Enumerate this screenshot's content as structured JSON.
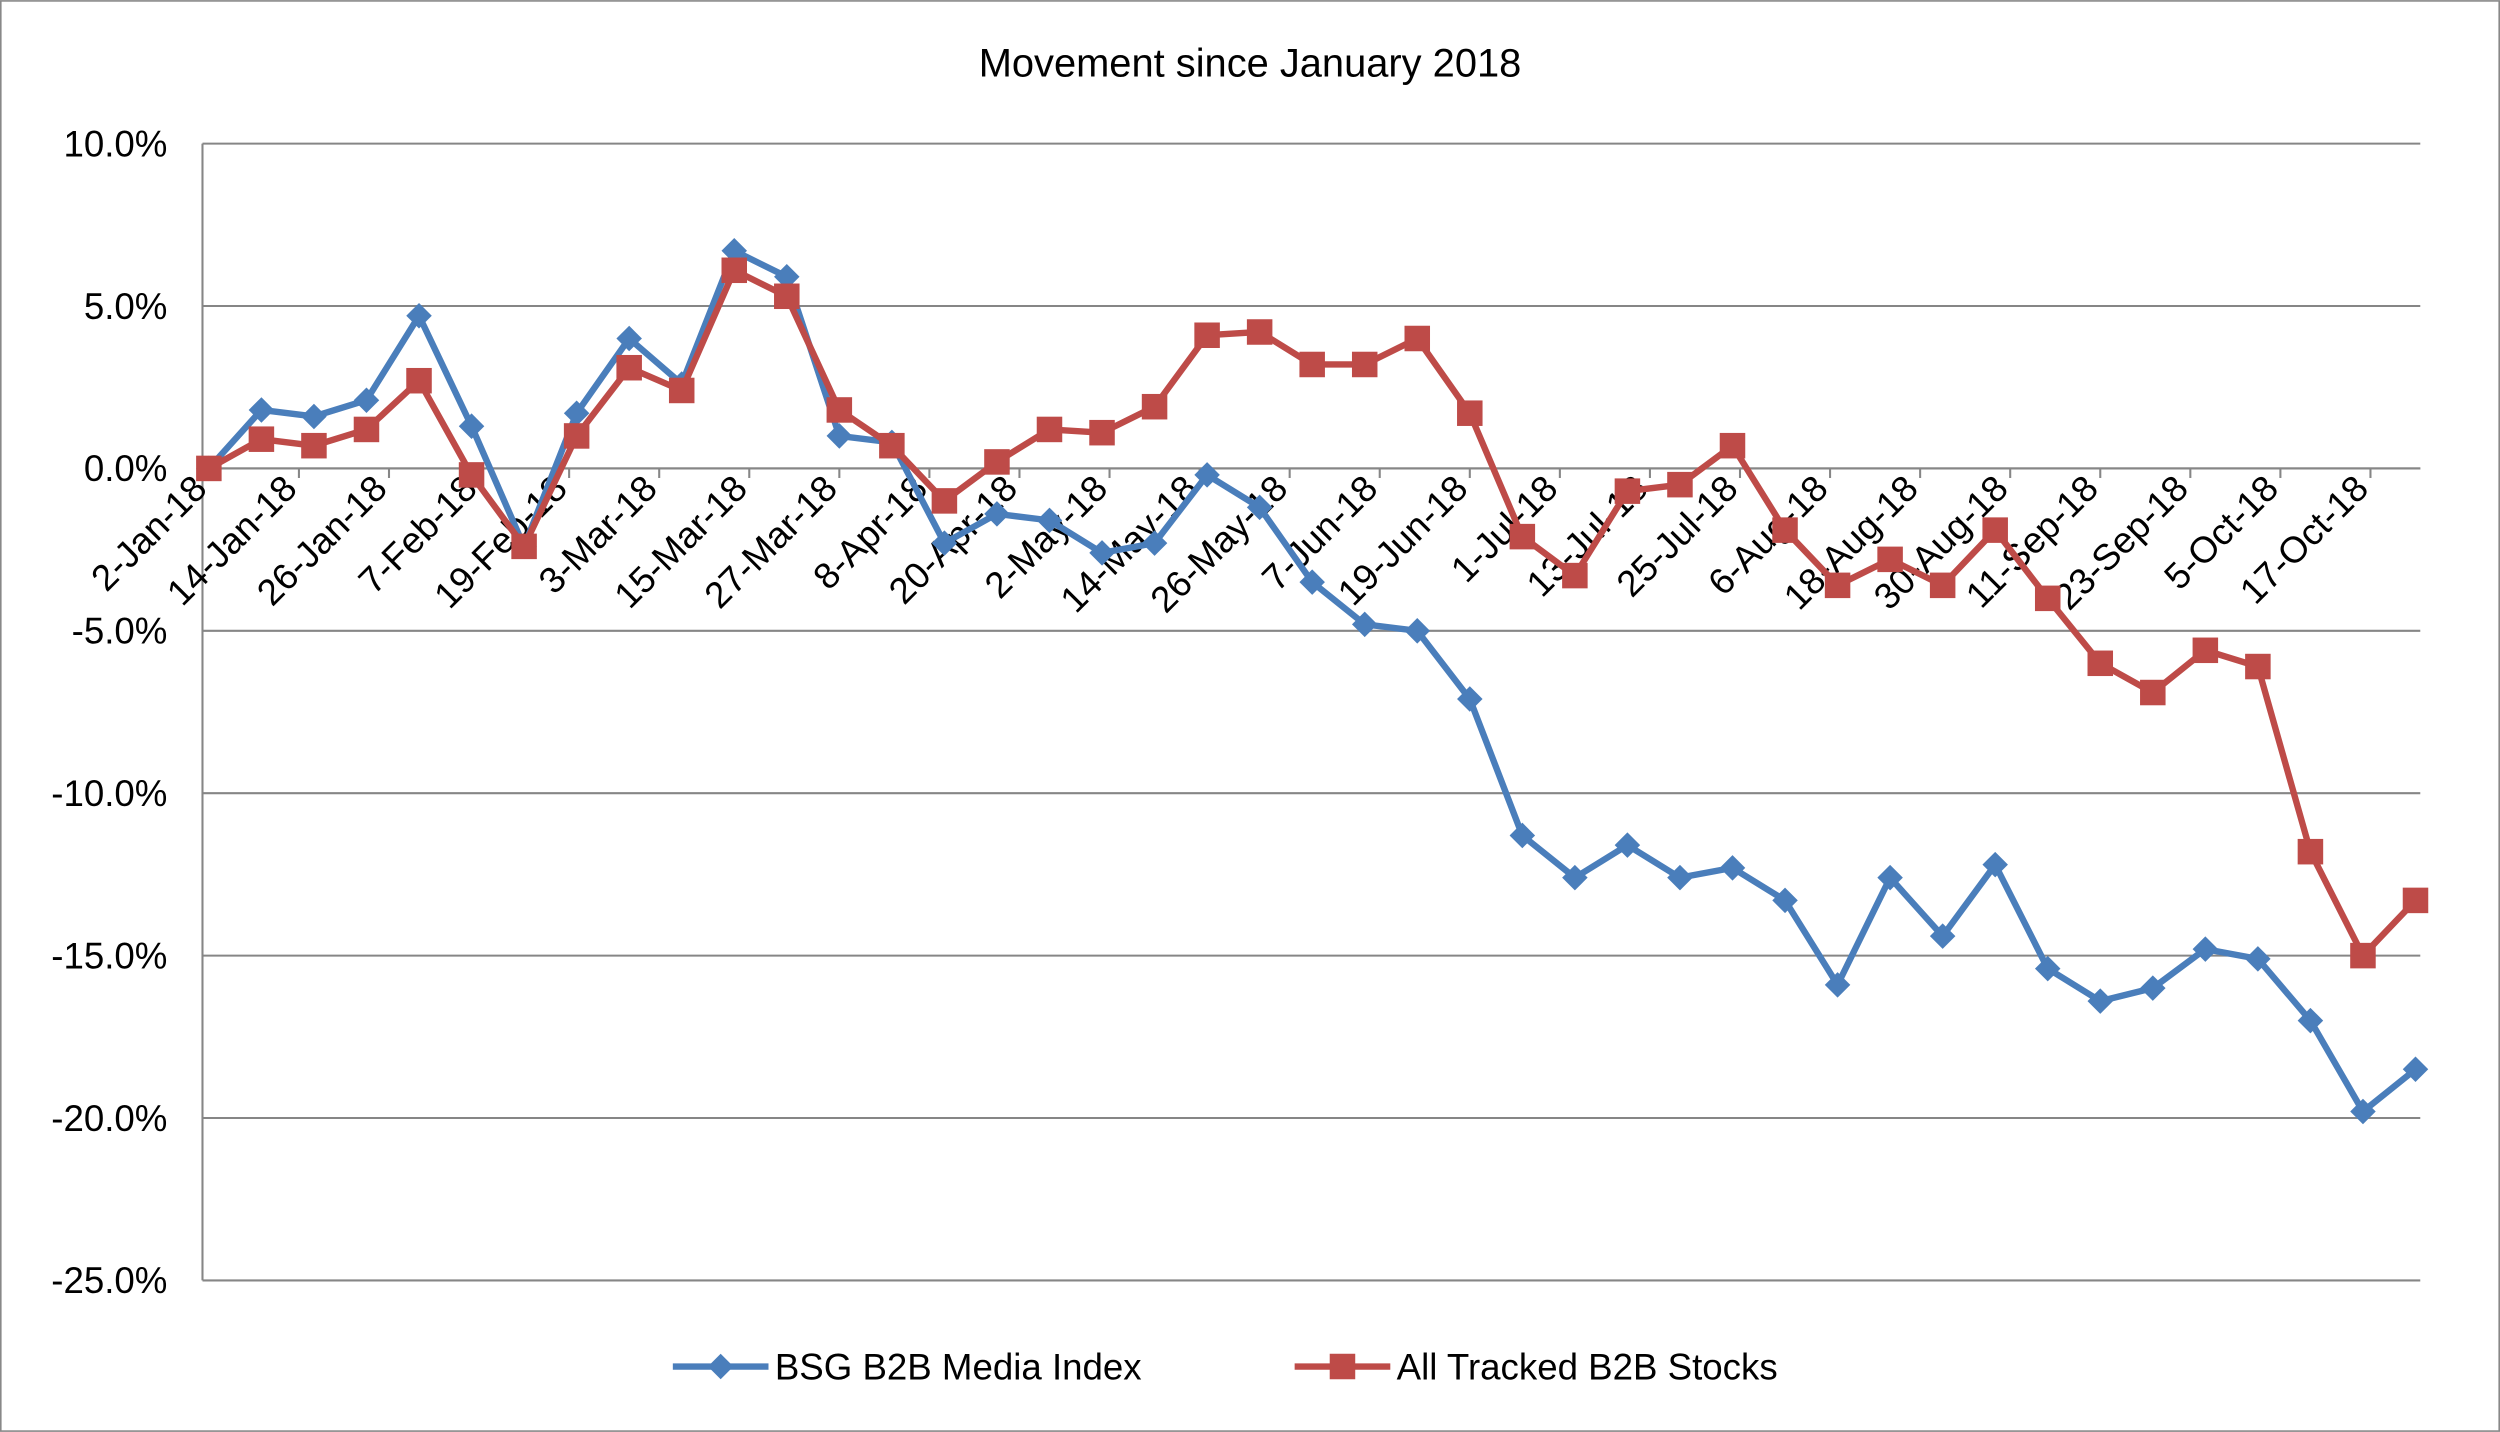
{
  "chart_data": {
    "type": "line",
    "title": "Movement since January 2018",
    "x": [
      "2018-01-02",
      "2018-01-09",
      "2018-01-16",
      "2018-01-23",
      "2018-01-30",
      "2018-02-06",
      "2018-02-13",
      "2018-02-20",
      "2018-02-27",
      "2018-03-06",
      "2018-03-13",
      "2018-03-20",
      "2018-03-27",
      "2018-04-03",
      "2018-04-10",
      "2018-04-17",
      "2018-04-24",
      "2018-05-01",
      "2018-05-08",
      "2018-05-15",
      "2018-05-22",
      "2018-05-29",
      "2018-06-05",
      "2018-06-12",
      "2018-06-19",
      "2018-06-26",
      "2018-07-03",
      "2018-07-10",
      "2018-07-17",
      "2018-07-24",
      "2018-07-31",
      "2018-08-07",
      "2018-08-14",
      "2018-08-21",
      "2018-08-28",
      "2018-09-04",
      "2018-09-11",
      "2018-09-18",
      "2018-09-25",
      "2018-10-02",
      "2018-10-09",
      "2018-10-16",
      "2018-10-23"
    ],
    "series": [
      {
        "name": "BSG B2B Media Index",
        "color": "#4a7ebb",
        "marker": "diamond",
        "values": [
          0,
          1.8,
          1.6,
          2.1,
          4.7,
          1.3,
          -2.4,
          1.7,
          4.0,
          2.6,
          6.7,
          5.9,
          1.0,
          0.8,
          -2.3,
          -1.4,
          -1.6,
          -2.6,
          -2.3,
          -0.2,
          -1.2,
          -3.5,
          -4.8,
          -5.0,
          -7.1,
          -11.3,
          -12.6,
          -11.6,
          -12.6,
          -12.3,
          -13.3,
          -15.9,
          -12.6,
          -14.4,
          -12.2,
          -15.4,
          -16.4,
          -16.0,
          -14.8,
          -15.1,
          -17.0,
          -19.8,
          -18.5
        ]
      },
      {
        "name": "All Tracked B2B Stocks",
        "color": "#be4b48",
        "marker": "square",
        "values": [
          0,
          0.9,
          0.7,
          1.2,
          2.7,
          -0.2,
          -2.4,
          1.0,
          3.1,
          2.4,
          6.1,
          5.3,
          1.8,
          0.7,
          -1.0,
          0.2,
          1.2,
          1.1,
          1.9,
          4.1,
          4.2,
          3.2,
          3.2,
          4.0,
          1.7,
          -2.1,
          -3.3,
          -0.7,
          -0.5,
          0.7,
          -1.9,
          -3.6,
          -2.8,
          -3.6,
          -1.9,
          -4.0,
          -6.0,
          -6.9,
          -5.6,
          -6.1,
          -11.8,
          -15.0,
          -13.3
        ]
      }
    ],
    "xticks": [
      {
        "value": "2018-01-02",
        "label": "2-Jan-18"
      },
      {
        "value": "2018-01-14",
        "label": "14-Jan-18"
      },
      {
        "value": "2018-01-26",
        "label": "26-Jan-18"
      },
      {
        "value": "2018-02-07",
        "label": "7-Feb-18"
      },
      {
        "value": "2018-02-19",
        "label": "19-Feb-18"
      },
      {
        "value": "2018-03-03",
        "label": "3-Mar-18"
      },
      {
        "value": "2018-03-15",
        "label": "15-Mar-18"
      },
      {
        "value": "2018-03-27",
        "label": "27-Mar-18"
      },
      {
        "value": "2018-04-08",
        "label": "8-Apr-18"
      },
      {
        "value": "2018-04-20",
        "label": "20-Apr-18"
      },
      {
        "value": "2018-05-02",
        "label": "2-May-18"
      },
      {
        "value": "2018-05-14",
        "label": "14-May-18"
      },
      {
        "value": "2018-05-26",
        "label": "26-May-18"
      },
      {
        "value": "2018-06-07",
        "label": "7-Jun-18"
      },
      {
        "value": "2018-06-19",
        "label": "19-Jun-18"
      },
      {
        "value": "2018-07-01",
        "label": "1-Jul-18"
      },
      {
        "value": "2018-07-13",
        "label": "13-Jul-18"
      },
      {
        "value": "2018-07-25",
        "label": "25-Jul-18"
      },
      {
        "value": "2018-08-06",
        "label": "6-Aug-18"
      },
      {
        "value": "2018-08-18",
        "label": "18-Aug-18"
      },
      {
        "value": "2018-08-30",
        "label": "30-Aug-18"
      },
      {
        "value": "2018-09-11",
        "label": "11-Sep-18"
      },
      {
        "value": "2018-09-23",
        "label": "23-Sep-18"
      },
      {
        "value": "2018-10-05",
        "label": "5-Oct-18"
      },
      {
        "value": "2018-10-17",
        "label": "17-Oct-18"
      }
    ],
    "xlim": [
      "2018-01-02",
      "2018-10-23"
    ],
    "ylim": [
      -25,
      10
    ],
    "yticks": [
      {
        "value": 10,
        "label": "10.0%"
      },
      {
        "value": 5,
        "label": "5.0%"
      },
      {
        "value": 0,
        "label": "0.0%"
      },
      {
        "value": -5,
        "label": "-5.0%"
      },
      {
        "value": -10,
        "label": "-10.0%"
      },
      {
        "value": -15,
        "label": "-15.0%"
      },
      {
        "value": -20,
        "label": "-20.0%"
      },
      {
        "value": -25,
        "label": "-25.0%"
      }
    ],
    "grid": true,
    "legend": "bottom"
  }
}
